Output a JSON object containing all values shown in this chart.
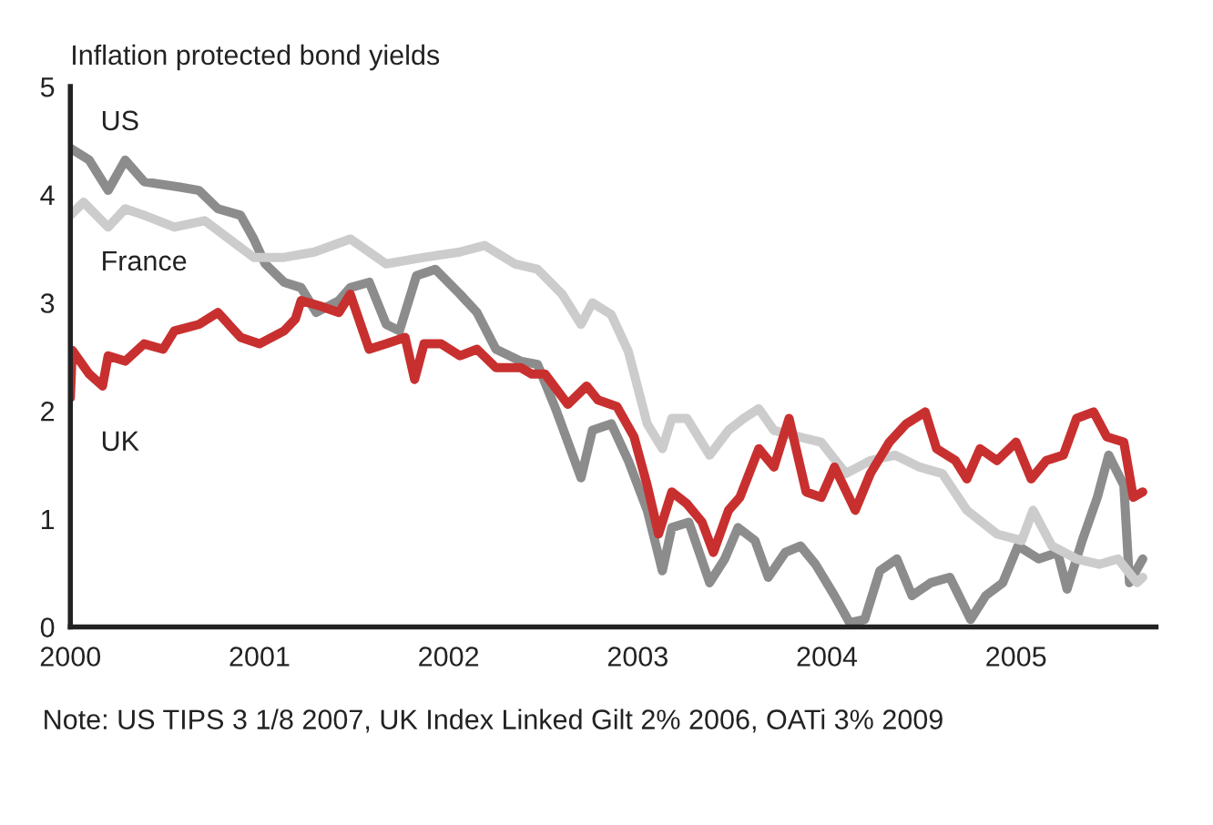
{
  "chart_data": {
    "type": "line",
    "title": "Inflation protected bond yields",
    "xlim": [
      2000,
      2005.74
    ],
    "xticks": [
      2000,
      2001,
      2002,
      2003,
      2004,
      2005
    ],
    "ylim": [
      0,
      5
    ],
    "yticks": [
      0,
      1,
      2,
      3,
      4,
      5
    ],
    "grid": false,
    "legend": false,
    "marker": "none",
    "line_style": "solid",
    "annotations": [
      "Note: US TIPS 3 1/8 2007, UK Index Linked Gilt 2% 2006, OATi 3% 2009"
    ],
    "series": [
      {
        "name": "US",
        "color": "#8c8c8c",
        "x": [
          2000.0,
          2000.1,
          2000.2,
          2000.29,
          2000.39,
          2000.58,
          2000.68,
          2000.78,
          2000.9,
          2000.97,
          2001.03,
          2001.13,
          2001.22,
          2001.3,
          2001.42,
          2001.48,
          2001.58,
          2001.67,
          2001.74,
          2001.83,
          2001.93,
          2002.06,
          2002.15,
          2002.25,
          2002.38,
          2002.47,
          2002.57,
          2002.7,
          2002.76,
          2002.86,
          2002.95,
          2003.05,
          2003.13,
          2003.18,
          2003.27,
          2003.38,
          2003.46,
          2003.53,
          2003.62,
          2003.69,
          2003.78,
          2003.86,
          2003.94,
          2004.04,
          2004.12,
          2004.2,
          2004.28,
          2004.37,
          2004.45,
          2004.55,
          2004.65,
          2004.76,
          2004.84,
          2004.93,
          2005.01,
          2005.12,
          2005.22,
          2005.27,
          2005.35,
          2005.43,
          2005.49,
          2005.57,
          2005.6,
          2005.67
        ],
        "values": [
          4.43,
          4.32,
          4.04,
          4.32,
          4.12,
          4.07,
          4.04,
          3.87,
          3.81,
          3.59,
          3.36,
          3.19,
          3.14,
          2.91,
          3.02,
          3.14,
          3.19,
          2.8,
          2.74,
          3.25,
          3.31,
          3.08,
          2.91,
          2.57,
          2.46,
          2.43,
          2.0,
          1.38,
          1.82,
          1.88,
          1.54,
          1.08,
          0.52,
          0.92,
          0.97,
          0.41,
          0.63,
          0.92,
          0.8,
          0.46,
          0.69,
          0.75,
          0.58,
          0.29,
          0.04,
          0.07,
          0.52,
          0.63,
          0.29,
          0.41,
          0.46,
          0.07,
          0.29,
          0.41,
          0.75,
          0.63,
          0.69,
          0.35,
          0.8,
          1.2,
          1.59,
          1.31,
          0.41,
          0.63
        ]
      },
      {
        "name": "France",
        "color": "#cccccc",
        "x": [
          2000.0,
          2000.07,
          2000.2,
          2000.29,
          2000.39,
          2000.55,
          2000.71,
          2000.84,
          2000.97,
          2001.13,
          2001.29,
          2001.48,
          2001.67,
          2001.87,
          2002.06,
          2002.19,
          2002.35,
          2002.47,
          2002.6,
          2002.7,
          2002.76,
          2002.86,
          2002.95,
          2003.05,
          2003.13,
          2003.18,
          2003.26,
          2003.38,
          2003.48,
          2003.56,
          2003.64,
          2003.72,
          2003.85,
          2003.97,
          2004.1,
          2004.23,
          2004.36,
          2004.49,
          2004.61,
          2004.74,
          2004.9,
          2005.03,
          2005.09,
          2005.19,
          2005.32,
          2005.44,
          2005.54,
          2005.64,
          2005.67
        ],
        "values": [
          3.81,
          3.93,
          3.7,
          3.87,
          3.81,
          3.7,
          3.76,
          3.59,
          3.42,
          3.42,
          3.47,
          3.59,
          3.36,
          3.42,
          3.47,
          3.53,
          3.36,
          3.31,
          3.08,
          2.8,
          3.0,
          2.89,
          2.55,
          1.88,
          1.65,
          1.93,
          1.93,
          1.59,
          1.82,
          1.93,
          2.02,
          1.82,
          1.76,
          1.71,
          1.42,
          1.54,
          1.59,
          1.48,
          1.42,
          1.08,
          0.86,
          0.8,
          1.08,
          0.75,
          0.63,
          0.58,
          0.63,
          0.41,
          0.46
        ]
      },
      {
        "name": "UK",
        "color": "#c8302f",
        "x": [
          2000.0,
          2000.01,
          2000.1,
          2000.17,
          2000.2,
          2000.29,
          2000.39,
          2000.49,
          2000.55,
          2000.68,
          2000.78,
          2000.9,
          2001.0,
          2001.13,
          2001.19,
          2001.22,
          2001.32,
          2001.42,
          2001.48,
          2001.58,
          2001.67,
          2001.77,
          2001.82,
          2001.87,
          2001.96,
          2002.06,
          2002.15,
          2002.25,
          2002.38,
          2002.44,
          2002.51,
          2002.63,
          2002.73,
          2002.79,
          2002.89,
          2002.98,
          2003.05,
          2003.11,
          2003.18,
          2003.26,
          2003.34,
          2003.4,
          2003.48,
          2003.54,
          2003.64,
          2003.72,
          2003.8,
          2003.89,
          2003.97,
          2004.04,
          2004.15,
          2004.23,
          2004.33,
          2004.42,
          2004.52,
          2004.58,
          2004.68,
          2004.74,
          2004.81,
          2004.9,
          2005.0,
          2005.08,
          2005.16,
          2005.25,
          2005.32,
          2005.41,
          2005.48,
          2005.57,
          2005.62,
          2005.67
        ],
        "values": [
          2.12,
          2.56,
          2.34,
          2.23,
          2.51,
          2.46,
          2.62,
          2.57,
          2.74,
          2.8,
          2.91,
          2.68,
          2.62,
          2.74,
          2.85,
          3.02,
          2.97,
          2.91,
          3.08,
          2.57,
          2.62,
          2.68,
          2.29,
          2.62,
          2.62,
          2.51,
          2.57,
          2.4,
          2.4,
          2.34,
          2.34,
          2.06,
          2.23,
          2.1,
          2.04,
          1.76,
          1.31,
          0.86,
          1.25,
          1.14,
          0.97,
          0.69,
          1.08,
          1.2,
          1.65,
          1.48,
          1.93,
          1.25,
          1.2,
          1.48,
          1.08,
          1.42,
          1.71,
          1.88,
          1.99,
          1.65,
          1.54,
          1.37,
          1.65,
          1.54,
          1.71,
          1.37,
          1.54,
          1.59,
          1.93,
          1.99,
          1.76,
          1.71,
          1.2,
          1.25
        ]
      }
    ]
  }
}
